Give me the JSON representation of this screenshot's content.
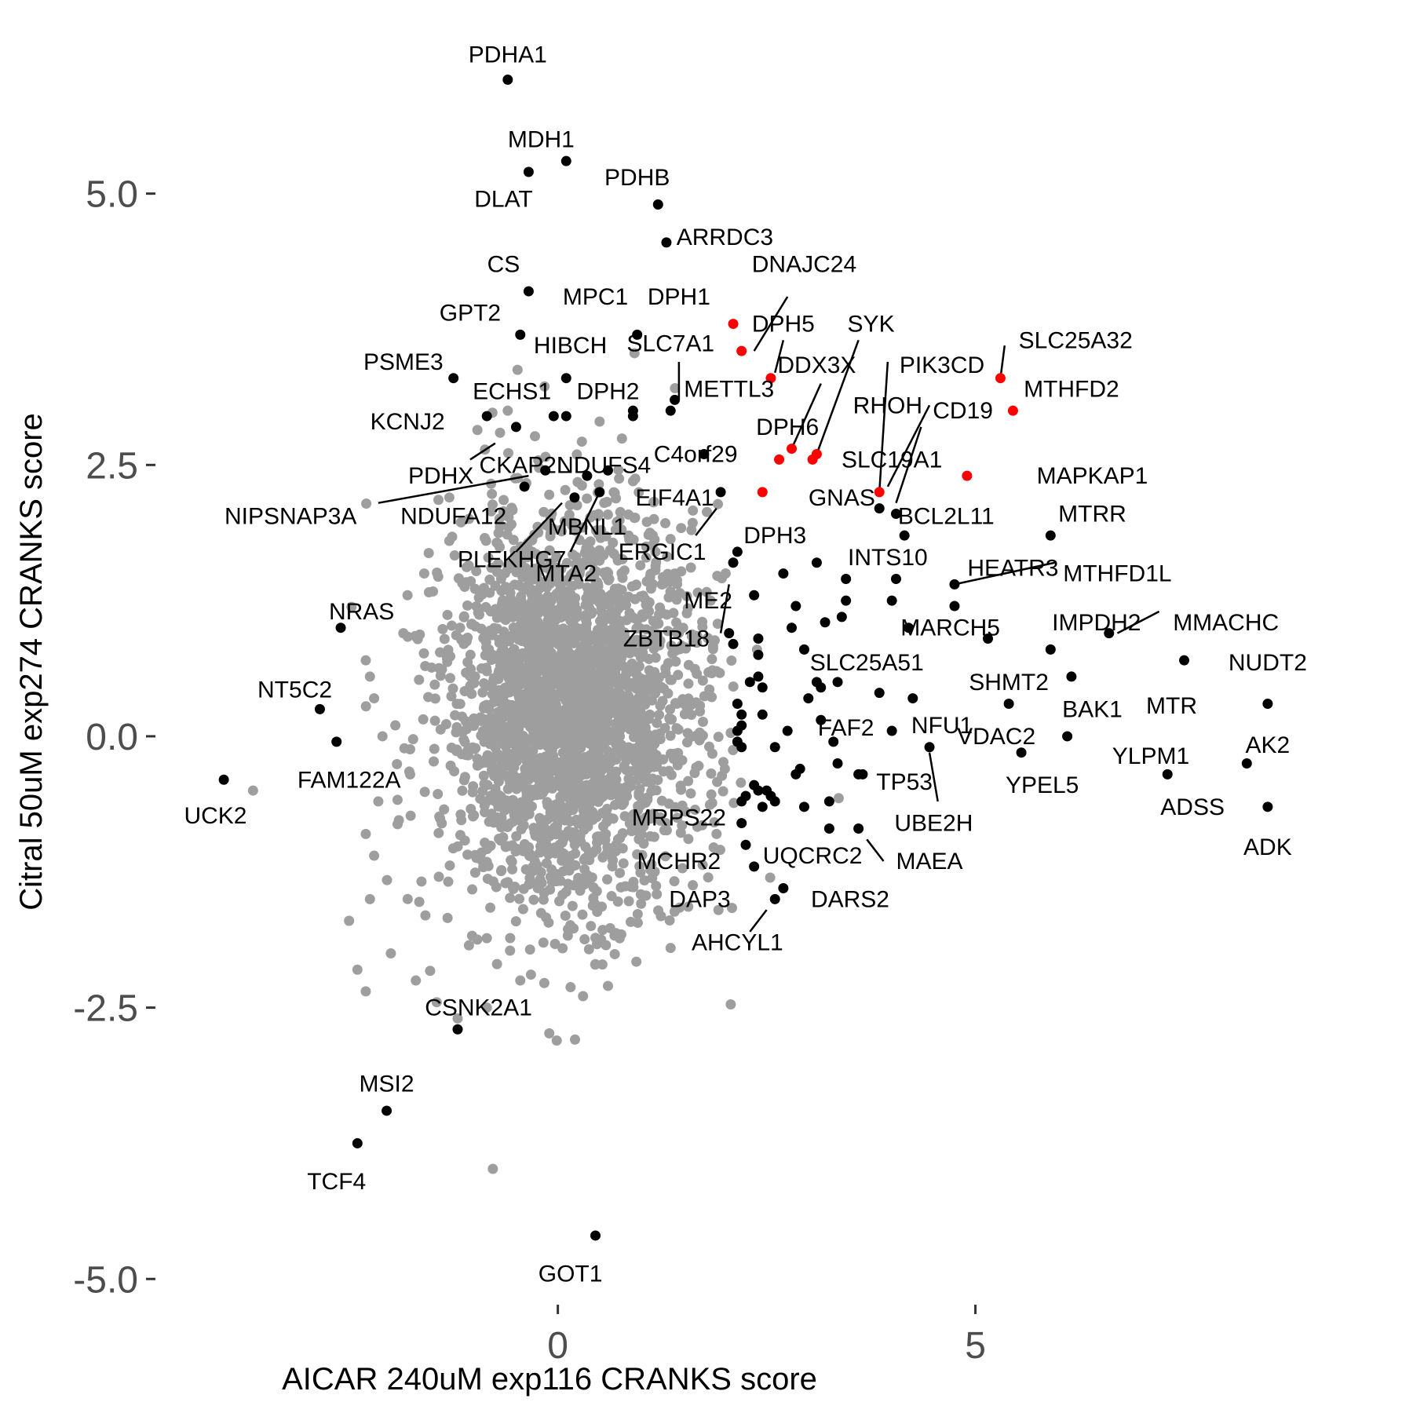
{
  "chart_data": {
    "type": "scatter",
    "xlabel": "AICAR 240uM exp116 CRANKS score",
    "ylabel": "Citral 50uM exp274 CRANKS score",
    "xlim": [
      -4.8,
      9.3
    ],
    "ylim": [
      -5.15,
      6.35
    ],
    "x_ticks": [
      {
        "value": 0,
        "label": "0"
      },
      {
        "value": 5,
        "label": "5"
      }
    ],
    "y_ticks": [
      {
        "value": 5.0,
        "label": "5.0"
      },
      {
        "value": 2.5,
        "label": "2.5"
      },
      {
        "value": 0.0,
        "label": "0.0"
      },
      {
        "value": -2.5,
        "label": "-2.5"
      },
      {
        "value": -5.0,
        "label": "-5.0"
      }
    ],
    "grid": false,
    "legend": "none",
    "colors": {
      "background_genes": "#9e9e9e",
      "highlight": "#000000",
      "red_highlight": "#ff0000"
    },
    "background_cloud": {
      "description_free": true,
      "center": [
        0.15,
        0.25
      ],
      "spread": [
        0.75,
        0.9
      ],
      "count": 2600,
      "seed": 7
    },
    "background_outliers": [
      [
        -3.65,
        -0.5
      ],
      [
        -2.3,
        0.7
      ],
      [
        -2.25,
        0.55
      ],
      [
        -2.2,
        0.35
      ],
      [
        -2.1,
        0.0
      ],
      [
        -2.15,
        -0.6
      ],
      [
        -2.3,
        -0.9
      ],
      [
        -2.2,
        -1.1
      ],
      [
        -2.25,
        -1.5
      ],
      [
        -2.5,
        -1.7
      ],
      [
        -2.4,
        -2.15
      ],
      [
        -2.3,
        -2.35
      ],
      [
        -1.7,
        -2.25
      ],
      [
        -1.45,
        -2.45
      ],
      [
        -1.2,
        -2.6
      ],
      [
        -0.85,
        -2.5
      ],
      [
        -0.45,
        -2.25
      ],
      [
        0.45,
        -2.1
      ],
      [
        0.6,
        -2.3
      ],
      [
        1.35,
        -1.95
      ],
      [
        -1.8,
        1.3
      ],
      [
        -1.6,
        1.5
      ],
      [
        -1.3,
        1.8
      ],
      [
        -0.6,
        3.0
      ],
      [
        0.5,
        2.9
      ],
      [
        1.4,
        1.5
      ],
      [
        1.5,
        1.0
      ],
      [
        1.9,
        0.6
      ],
      [
        2.0,
        -0.3
      ],
      [
        1.9,
        -0.9
      ],
      [
        1.8,
        -1.3
      ],
      [
        -2.0,
        -2.0
      ],
      [
        -1.85,
        0.95
      ],
      [
        1.6,
        1.9
      ],
      [
        0.9,
        2.35
      ]
    ],
    "black_points": [
      {
        "x": -0.6,
        "y": 6.05
      },
      {
        "x": -0.35,
        "y": 5.2
      },
      {
        "x": 0.1,
        "y": 5.3
      },
      {
        "x": 1.2,
        "y": 4.9
      },
      {
        "x": 1.3,
        "y": 4.55
      },
      {
        "x": -0.35,
        "y": 4.1
      },
      {
        "x": -0.45,
        "y": 3.7
      },
      {
        "x": 0.95,
        "y": 3.7
      },
      {
        "x": -1.25,
        "y": 3.3
      },
      {
        "x": 0.1,
        "y": 3.3
      },
      {
        "x": -0.85,
        "y": 2.95
      },
      {
        "x": -0.5,
        "y": 2.85
      },
      {
        "x": -0.05,
        "y": 2.95
      },
      {
        "x": 0.1,
        "y": 2.95
      },
      {
        "x": 0.9,
        "y": 3.0
      },
      {
        "x": 0.9,
        "y": 2.95
      },
      {
        "x": 1.35,
        "y": 3.0
      },
      {
        "x": 1.4,
        "y": 3.1
      },
      {
        "x": 1.75,
        "y": 2.6
      },
      {
        "x": -0.15,
        "y": 2.45
      },
      {
        "x": -0.4,
        "y": 2.3
      },
      {
        "x": 0.35,
        "y": 2.4
      },
      {
        "x": 0.6,
        "y": 2.45
      },
      {
        "x": 0.2,
        "y": 2.2
      },
      {
        "x": 0.5,
        "y": 2.25
      },
      {
        "x": 1.95,
        "y": 2.25
      },
      {
        "x": 3.85,
        "y": 2.1
      },
      {
        "x": 4.05,
        "y": 2.05
      },
      {
        "x": 4.15,
        "y": 1.85
      },
      {
        "x": 5.9,
        "y": 1.85
      },
      {
        "x": 2.15,
        "y": 1.7
      },
      {
        "x": 2.1,
        "y": 1.6
      },
      {
        "x": 3.1,
        "y": 1.6
      },
      {
        "x": 2.7,
        "y": 1.5
      },
      {
        "x": 3.45,
        "y": 1.45
      },
      {
        "x": 4.05,
        "y": 1.45
      },
      {
        "x": 4.75,
        "y": 1.4
      },
      {
        "x": 2.35,
        "y": 1.3
      },
      {
        "x": 3.45,
        "y": 1.25
      },
      {
        "x": 4.0,
        "y": 1.25
      },
      {
        "x": 2.85,
        "y": 1.2
      },
      {
        "x": 4.75,
        "y": 1.2
      },
      {
        "x": 3.4,
        "y": 1.1
      },
      {
        "x": 3.2,
        "y": 1.05
      },
      {
        "x": 2.8,
        "y": 1.0
      },
      {
        "x": 4.2,
        "y": 1.0
      },
      {
        "x": 6.6,
        "y": 0.95
      },
      {
        "x": 2.05,
        "y": 0.95
      },
      {
        "x": 2.4,
        "y": 0.9
      },
      {
        "x": 5.15,
        "y": 0.9
      },
      {
        "x": 2.1,
        "y": 0.85
      },
      {
        "x": 2.95,
        "y": 0.8
      },
      {
        "x": 2.4,
        "y": 0.75
      },
      {
        "x": 5.9,
        "y": 0.8
      },
      {
        "x": 7.5,
        "y": 0.7
      },
      {
        "x": 2.4,
        "y": 0.55
      },
      {
        "x": 3.1,
        "y": 0.5
      },
      {
        "x": 3.35,
        "y": 0.5
      },
      {
        "x": 3.15,
        "y": 0.45
      },
      {
        "x": 6.15,
        "y": 0.55
      },
      {
        "x": 2.3,
        "y": 0.5
      },
      {
        "x": 2.45,
        "y": 0.45
      },
      {
        "x": 3.0,
        "y": 0.35
      },
      {
        "x": 3.85,
        "y": 0.4
      },
      {
        "x": 4.25,
        "y": 0.35
      },
      {
        "x": 5.4,
        "y": 0.3
      },
      {
        "x": 2.15,
        "y": 0.3
      },
      {
        "x": 2.45,
        "y": 0.2
      },
      {
        "x": 2.2,
        "y": 0.2
      },
      {
        "x": 2.2,
        "y": 0.1
      },
      {
        "x": 2.15,
        "y": 0.05
      },
      {
        "x": 3.15,
        "y": 0.15
      },
      {
        "x": 2.75,
        "y": 0.05
      },
      {
        "x": 4.0,
        "y": 0.05
      },
      {
        "x": 8.5,
        "y": 0.3
      },
      {
        "x": 2.15,
        "y": -0.05
      },
      {
        "x": 2.2,
        "y": -0.1
      },
      {
        "x": 3.3,
        "y": -0.05
      },
      {
        "x": 2.6,
        "y": -0.1
      },
      {
        "x": 4.45,
        "y": -0.1
      },
      {
        "x": 6.1,
        "y": 0.0
      },
      {
        "x": 5.55,
        "y": -0.15
      },
      {
        "x": 2.9,
        "y": -0.3
      },
      {
        "x": 2.85,
        "y": -0.35
      },
      {
        "x": 3.35,
        "y": -0.25
      },
      {
        "x": 3.6,
        "y": -0.35
      },
      {
        "x": 3.65,
        "y": -0.35
      },
      {
        "x": 7.3,
        "y": -0.35
      },
      {
        "x": 8.25,
        "y": -0.25
      },
      {
        "x": 2.35,
        "y": -0.45
      },
      {
        "x": 2.4,
        "y": -0.5
      },
      {
        "x": 2.5,
        "y": -0.5
      },
      {
        "x": 2.55,
        "y": -0.55
      },
      {
        "x": 2.25,
        "y": -0.55
      },
      {
        "x": 2.2,
        "y": -0.6
      },
      {
        "x": 2.45,
        "y": -0.65
      },
      {
        "x": 2.6,
        "y": -0.6
      },
      {
        "x": 3.25,
        "y": -0.6
      },
      {
        "x": 2.95,
        "y": -0.65
      },
      {
        "x": 8.5,
        "y": -0.65
      },
      {
        "x": 2.2,
        "y": -0.8
      },
      {
        "x": 3.25,
        "y": -0.85
      },
      {
        "x": 3.6,
        "y": -0.85
      },
      {
        "x": 2.25,
        "y": -1.0
      },
      {
        "x": 2.35,
        "y": -1.2
      },
      {
        "x": 2.7,
        "y": -1.4
      },
      {
        "x": 2.6,
        "y": -1.5
      },
      {
        "x": -2.6,
        "y": 1.0
      },
      {
        "x": -2.85,
        "y": 0.25
      },
      {
        "x": -2.65,
        "y": -0.05
      },
      {
        "x": -4.0,
        "y": -0.4
      },
      {
        "x": -1.2,
        "y": -2.7
      },
      {
        "x": -2.05,
        "y": -3.45
      },
      {
        "x": -2.4,
        "y": -3.75
      },
      {
        "x": 0.45,
        "y": -4.6
      }
    ],
    "red_points": [
      {
        "x": 2.1,
        "y": 3.8
      },
      {
        "x": 2.2,
        "y": 3.55
      },
      {
        "x": 2.55,
        "y": 3.3
      },
      {
        "x": 2.8,
        "y": 2.65
      },
      {
        "x": 2.65,
        "y": 2.55
      },
      {
        "x": 2.45,
        "y": 2.25
      },
      {
        "x": 3.1,
        "y": 2.6
      },
      {
        "x": 3.05,
        "y": 2.55
      },
      {
        "x": 3.85,
        "y": 2.25
      },
      {
        "x": 4.9,
        "y": 2.4
      },
      {
        "x": 5.3,
        "y": 3.3
      },
      {
        "x": 5.45,
        "y": 3.0
      }
    ],
    "labels": [
      {
        "text": "PDHA1",
        "x": -0.6,
        "y": 6.28
      },
      {
        "text": "MDH1",
        "x": -0.2,
        "y": 5.5
      },
      {
        "text": "DLAT",
        "x": -0.65,
        "y": 4.95
      },
      {
        "text": "PDHB",
        "x": 0.95,
        "y": 5.15
      },
      {
        "text": "ARRDC3",
        "x": 2.0,
        "y": 4.6
      },
      {
        "text": "CS",
        "x": -0.65,
        "y": 4.35
      },
      {
        "text": "DNAJC24",
        "x": 2.95,
        "y": 4.35
      },
      {
        "text": "MPC1",
        "x": 0.45,
        "y": 4.05
      },
      {
        "text": "DPH1",
        "x": 1.45,
        "y": 4.05
      },
      {
        "text": "GPT2",
        "x": -1.05,
        "y": 3.9
      },
      {
        "text": "DPH5",
        "x": 2.7,
        "y": 3.8
      },
      {
        "text": "SYK",
        "x": 3.75,
        "y": 3.8
      },
      {
        "text": "SLC25A32",
        "x": 6.2,
        "y": 3.65
      },
      {
        "text": "HIBCH",
        "x": 0.15,
        "y": 3.6
      },
      {
        "text": "SLC7A1",
        "x": 1.35,
        "y": 3.62
      },
      {
        "text": "PSME3",
        "x": -1.85,
        "y": 3.45
      },
      {
        "text": "DDX3X",
        "x": 3.1,
        "y": 3.42
      },
      {
        "text": "PIK3CD",
        "x": 4.6,
        "y": 3.42
      },
      {
        "text": "ECHS1",
        "x": -0.55,
        "y": 3.18
      },
      {
        "text": "DPH2",
        "x": 0.6,
        "y": 3.18
      },
      {
        "text": "METTL3",
        "x": 2.05,
        "y": 3.2
      },
      {
        "text": "MTHFD2",
        "x": 6.15,
        "y": 3.2
      },
      {
        "text": "RHOH",
        "x": 3.95,
        "y": 3.05
      },
      {
        "text": "CD19",
        "x": 4.85,
        "y": 3.0
      },
      {
        "text": "KCNJ2",
        "x": -1.8,
        "y": 2.9
      },
      {
        "text": "DPH6",
        "x": 2.75,
        "y": 2.85
      },
      {
        "text": "C4orf29",
        "x": 1.65,
        "y": 2.6
      },
      {
        "text": "CKAP2L",
        "x": -0.4,
        "y": 2.5
      },
      {
        "text": "NDUFS4",
        "x": 0.55,
        "y": 2.5
      },
      {
        "text": "SLC19A1",
        "x": 4.0,
        "y": 2.55
      },
      {
        "text": "PDHX",
        "x": -1.4,
        "y": 2.4
      },
      {
        "text": "MAPKAP1",
        "x": 6.4,
        "y": 2.4
      },
      {
        "text": "GNAS",
        "x": 3.4,
        "y": 2.2
      },
      {
        "text": "EIF4A1",
        "x": 1.4,
        "y": 2.2
      },
      {
        "text": "NIPSNAP3A",
        "x": -3.2,
        "y": 2.03
      },
      {
        "text": "NDUFA12",
        "x": -1.25,
        "y": 2.03
      },
      {
        "text": "BCL2L11",
        "x": 4.65,
        "y": 2.03
      },
      {
        "text": "MTRR",
        "x": 6.4,
        "y": 2.05
      },
      {
        "text": "MBNL1",
        "x": 0.35,
        "y": 1.93
      },
      {
        "text": "DPH3",
        "x": 2.6,
        "y": 1.85
      },
      {
        "text": "ERGIC1",
        "x": 1.25,
        "y": 1.7
      },
      {
        "text": "PLEKHG7",
        "x": -0.55,
        "y": 1.63
      },
      {
        "text": "INTS10",
        "x": 3.95,
        "y": 1.65
      },
      {
        "text": "HEATR3",
        "x": 5.45,
        "y": 1.55
      },
      {
        "text": "MTHFD1L",
        "x": 6.7,
        "y": 1.5
      },
      {
        "text": "MTA2",
        "x": 0.1,
        "y": 1.5
      },
      {
        "text": "ME2",
        "x": 1.8,
        "y": 1.25
      },
      {
        "text": "NRAS",
        "x": -2.35,
        "y": 1.15
      },
      {
        "text": "IMPDH2",
        "x": 6.45,
        "y": 1.05
      },
      {
        "text": "MMACHC",
        "x": 8.0,
        "y": 1.05
      },
      {
        "text": "MARCH5",
        "x": 4.7,
        "y": 1.0
      },
      {
        "text": "ZBTB18",
        "x": 1.3,
        "y": 0.9
      },
      {
        "text": "SLC25A51",
        "x": 3.7,
        "y": 0.68
      },
      {
        "text": "NUDT2",
        "x": 8.5,
        "y": 0.68
      },
      {
        "text": "SHMT2",
        "x": 5.4,
        "y": 0.5
      },
      {
        "text": "NT5C2",
        "x": -3.15,
        "y": 0.43
      },
      {
        "text": "BAK1",
        "x": 6.4,
        "y": 0.25
      },
      {
        "text": "MTR",
        "x": 7.35,
        "y": 0.28
      },
      {
        "text": "FAF2",
        "x": 3.45,
        "y": 0.08
      },
      {
        "text": "NFU1",
        "x": 4.6,
        "y": 0.1
      },
      {
        "text": "VDAC2",
        "x": 5.25,
        "y": 0.0
      },
      {
        "text": "AK2",
        "x": 8.5,
        "y": -0.08
      },
      {
        "text": "YLPM1",
        "x": 7.1,
        "y": -0.18
      },
      {
        "text": "FAM122A",
        "x": -2.5,
        "y": -0.4
      },
      {
        "text": "TP53",
        "x": 4.15,
        "y": -0.42
      },
      {
        "text": "YPEL5",
        "x": 5.8,
        "y": -0.45
      },
      {
        "text": "ADSS",
        "x": 7.6,
        "y": -0.65
      },
      {
        "text": "UCK2",
        "x": -4.1,
        "y": -0.73
      },
      {
        "text": "MRPS22",
        "x": 1.45,
        "y": -0.75
      },
      {
        "text": "UBE2H",
        "x": 4.5,
        "y": -0.8
      },
      {
        "text": "ADK",
        "x": 8.5,
        "y": -1.02
      },
      {
        "text": "UQCRC2",
        "x": 3.05,
        "y": -1.1
      },
      {
        "text": "MCHR2",
        "x": 1.45,
        "y": -1.15
      },
      {
        "text": "MAEA",
        "x": 4.45,
        "y": -1.15
      },
      {
        "text": "DARS2",
        "x": 3.5,
        "y": -1.5
      },
      {
        "text": "DAP3",
        "x": 1.7,
        "y": -1.5
      },
      {
        "text": "AHCYL1",
        "x": 2.15,
        "y": -1.9
      },
      {
        "text": "CSNK2A1",
        "x": -0.95,
        "y": -2.5
      },
      {
        "text": "MSI2",
        "x": -2.05,
        "y": -3.2
      },
      {
        "text": "TCF4",
        "x": -2.65,
        "y": -4.1
      },
      {
        "text": "GOT1",
        "x": 0.15,
        "y": -4.95
      }
    ],
    "leader_lines": [
      [
        2.35,
        3.55,
        2.75,
        4.05
      ],
      [
        2.6,
        3.35,
        2.7,
        3.65
      ],
      [
        1.45,
        3.1,
        1.45,
        3.45
      ],
      [
        2.8,
        2.65,
        3.15,
        3.25
      ],
      [
        3.1,
        2.6,
        3.6,
        3.65
      ],
      [
        3.85,
        2.25,
        3.95,
        3.45
      ],
      [
        3.95,
        2.3,
        4.45,
        3.05
      ],
      [
        4.05,
        2.15,
        4.35,
        2.85
      ],
      [
        5.3,
        3.3,
        5.35,
        3.6
      ],
      [
        -1.05,
        2.55,
        -0.75,
        2.7
      ],
      [
        -2.15,
        2.15,
        -0.35,
        2.4
      ],
      [
        -0.5,
        1.7,
        0.05,
        2.15
      ],
      [
        0.15,
        1.7,
        0.5,
        2.25
      ],
      [
        1.65,
        1.85,
        1.9,
        2.1
      ],
      [
        1.95,
        0.95,
        2.05,
        1.4
      ],
      [
        4.75,
        1.4,
        5.95,
        1.6
      ],
      [
        6.7,
        0.95,
        7.2,
        1.15
      ],
      [
        4.45,
        -0.15,
        4.55,
        -0.6
      ],
      [
        3.7,
        -0.95,
        3.9,
        -1.15
      ],
      [
        2.3,
        -1.8,
        2.5,
        -1.6
      ]
    ]
  }
}
